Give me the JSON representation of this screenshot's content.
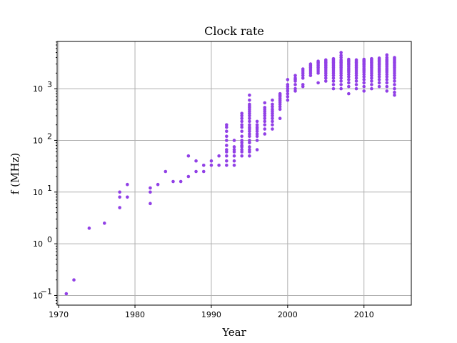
{
  "chart_data": {
    "type": "scatter",
    "title": "Clock rate",
    "xlabel": "Year",
    "ylabel": "f (MHz)",
    "xlim": [
      1969.8,
      2016.2
    ],
    "ylim": [
      0.065,
      8200
    ],
    "yscale": "log",
    "grid": true,
    "marker_color": "#9140e6",
    "x_ticks": [
      1970,
      1980,
      1990,
      2000,
      2010
    ],
    "x_tick_labels": [
      "1970",
      "1980",
      "1990",
      "2000",
      "2010"
    ],
    "y_ticks": [
      0.1,
      1,
      10,
      100,
      1000
    ],
    "y_tick_labels": [
      {
        "base": "10",
        "exp": "−1"
      },
      {
        "base": "10",
        "exp": "0"
      },
      {
        "base": "10",
        "exp": "1"
      },
      {
        "base": "10",
        "exp": "2"
      },
      {
        "base": "10",
        "exp": "3"
      }
    ],
    "groups": [
      {
        "x": 1971,
        "y": [
          0.108
        ]
      },
      {
        "x": 1972,
        "y": [
          0.2
        ]
      },
      {
        "x": 1974,
        "y": [
          2
        ]
      },
      {
        "x": 1976,
        "y": [
          2.5
        ]
      },
      {
        "x": 1978,
        "y": [
          5,
          8,
          10
        ]
      },
      {
        "x": 1979,
        "y": [
          8,
          14
        ]
      },
      {
        "x": 1982,
        "y": [
          6,
          10,
          12
        ]
      },
      {
        "x": 1983,
        "y": [
          14
        ]
      },
      {
        "x": 1984,
        "y": [
          25
        ]
      },
      {
        "x": 1985,
        "y": [
          16
        ]
      },
      {
        "x": 1986,
        "y": [
          16
        ]
      },
      {
        "x": 1987,
        "y": [
          20,
          50
        ]
      },
      {
        "x": 1988,
        "y": [
          25,
          40
        ]
      },
      {
        "x": 1989,
        "y": [
          25,
          33
        ]
      },
      {
        "x": 1990,
        "y": [
          33,
          40
        ]
      },
      {
        "x": 1991,
        "y": [
          33,
          50
        ]
      },
      {
        "x": 1992,
        "y": [
          33,
          40,
          50,
          60,
          66,
          80,
          100,
          120,
          150,
          180,
          200
        ]
      },
      {
        "x": 1993,
        "y": [
          33,
          40,
          50,
          60,
          66,
          75,
          100
        ]
      },
      {
        "x": 1994,
        "y": [
          50,
          60,
          66,
          75,
          80,
          90,
          100,
          120,
          150,
          180,
          200,
          233,
          266,
          300,
          333
        ]
      },
      {
        "x": 1995,
        "y": [
          50,
          60,
          66,
          75,
          90,
          100,
          120,
          133,
          150,
          166,
          180,
          200,
          233,
          266,
          300,
          333,
          366,
          400,
          433,
          466,
          500,
          600,
          750
        ]
      },
      {
        "x": 1996,
        "y": [
          66,
          100,
          120,
          133,
          150,
          166,
          180,
          200,
          233
        ]
      },
      {
        "x": 1997,
        "y": [
          133,
          166,
          200,
          233,
          266,
          300,
          333,
          366,
          400,
          433,
          533
        ]
      },
      {
        "x": 1998,
        "y": [
          166,
          200,
          233,
          266,
          300,
          333,
          366,
          400,
          450,
          500,
          600
        ]
      },
      {
        "x": 1999,
        "y": [
          266,
          400,
          450,
          500,
          550,
          600,
          650,
          700,
          750,
          800
        ]
      },
      {
        "x": 2000,
        "y": [
          600,
          700,
          800,
          900,
          1000,
          1100,
          1200,
          1500
        ]
      },
      {
        "x": 2001,
        "y": [
          900,
          1000,
          1200,
          1400,
          1500,
          1600,
          1800
        ]
      },
      {
        "x": 2002,
        "y": [
          1100,
          1200,
          1600,
          1800,
          2000,
          2200,
          2400
        ]
      },
      {
        "x": 2003,
        "y": [
          1800,
          2000,
          2200,
          2400,
          2600,
          2800,
          3000
        ]
      },
      {
        "x": 2004,
        "y": [
          1300,
          2000,
          2200,
          2400,
          2600,
          2800,
          3000,
          3200,
          3400
        ]
      },
      {
        "x": 2005,
        "y": [
          1400,
          1600,
          1800,
          2000,
          2200,
          2400,
          2600,
          2800,
          3000,
          3200,
          3400,
          3600
        ]
      },
      {
        "x": 2006,
        "y": [
          1000,
          1200,
          1400,
          1600,
          1800,
          2000,
          2200,
          2400,
          2600,
          2800,
          3000,
          3200,
          3400,
          3600,
          3800
        ]
      },
      {
        "x": 2007,
        "y": [
          1000,
          1200,
          1400,
          1600,
          1800,
          2000,
          2200,
          2400,
          2600,
          2800,
          3000,
          3200,
          3400,
          3600,
          4000,
          4400,
          5000
        ]
      },
      {
        "x": 2008,
        "y": [
          800,
          1100,
          1300,
          1500,
          1700,
          1900,
          2100,
          2300,
          2500,
          2700,
          2900,
          3100,
          3300,
          3500,
          3700
        ]
      },
      {
        "x": 2009,
        "y": [
          1000,
          1200,
          1400,
          1600,
          1800,
          2000,
          2200,
          2400,
          2600,
          2800,
          3000,
          3200,
          3400,
          3600
        ]
      },
      {
        "x": 2010,
        "y": [
          900,
          1100,
          1300,
          1500,
          1700,
          1900,
          2100,
          2300,
          2500,
          2700,
          2900,
          3100,
          3300,
          3500,
          3700
        ]
      },
      {
        "x": 2011,
        "y": [
          1000,
          1200,
          1400,
          1600,
          1800,
          2000,
          2200,
          2400,
          2600,
          2800,
          3000,
          3200,
          3400,
          3600,
          3800
        ]
      },
      {
        "x": 2012,
        "y": [
          1100,
          1300,
          1500,
          1700,
          1900,
          2100,
          2300,
          2500,
          2700,
          2900,
          3100,
          3300,
          3500,
          3700,
          3900
        ]
      },
      {
        "x": 2013,
        "y": [
          900,
          1100,
          1300,
          1500,
          1700,
          1900,
          2100,
          2300,
          2500,
          2700,
          2900,
          3100,
          3300,
          3500,
          3700,
          4000,
          4500
        ]
      },
      {
        "x": 2014,
        "y": [
          750,
          850,
          1000,
          1200,
          1400,
          1600,
          1800,
          2000,
          2200,
          2400,
          2600,
          2800,
          3000,
          3200,
          3400,
          3600,
          3800,
          4000
        ]
      }
    ]
  }
}
